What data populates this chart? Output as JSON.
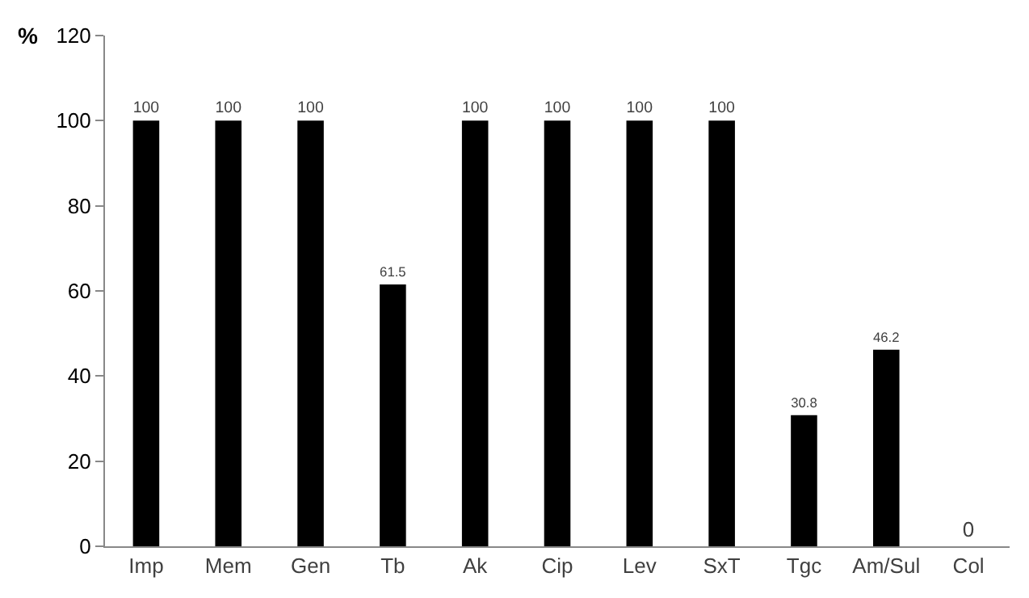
{
  "chart_data": {
    "type": "bar",
    "ylabel": "%",
    "categories": [
      "Imp",
      "Mem",
      "Gen",
      "Tb",
      "Ak",
      "Cip",
      "Lev",
      "SxT",
      "Tgc",
      "Am/Sul",
      "Col"
    ],
    "values": [
      100,
      100,
      100,
      61.5,
      100,
      100,
      100,
      100,
      30.8,
      46.2,
      0
    ],
    "color": "#000000",
    "ylim": [
      0,
      120
    ],
    "yticks": [
      0,
      20,
      40,
      60,
      80,
      100,
      120
    ],
    "data_labels": true
  }
}
